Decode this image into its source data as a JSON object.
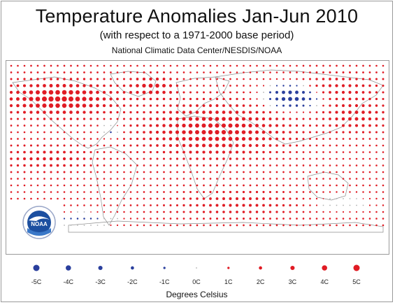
{
  "header": {
    "title": "Temperature Anomalies Jan-Jun 2010",
    "subtitle": "(with respect to a 1971-2000 base period)",
    "source": "National Climatic Data Center/NESDIS/NOAA"
  },
  "logo": {
    "text": "NOAA",
    "seal_text": "U.S. DEPARTMENT OF COMMERCE"
  },
  "legend": {
    "title": "Degrees Celsius",
    "items": [
      {
        "label": "-5C",
        "value": -5
      },
      {
        "label": "-4C",
        "value": -4
      },
      {
        "label": "-3C",
        "value": -3
      },
      {
        "label": "-2C",
        "value": -2
      },
      {
        "label": "-1C",
        "value": -1
      },
      {
        "label": "0C",
        "value": 0
      },
      {
        "label": "1C",
        "value": 1
      },
      {
        "label": "2C",
        "value": 2
      },
      {
        "label": "3C",
        "value": 3
      },
      {
        "label": "4C",
        "value": 4
      },
      {
        "label": "5C",
        "value": 5
      }
    ]
  },
  "colors": {
    "warm": "#e01b24",
    "cool": "#2a3f9d",
    "neutral": "#b0b0b0",
    "coastline": "#8c8c8c",
    "grid": "#bdbdbd",
    "logo_blue": "#1c4fa0"
  }
}
